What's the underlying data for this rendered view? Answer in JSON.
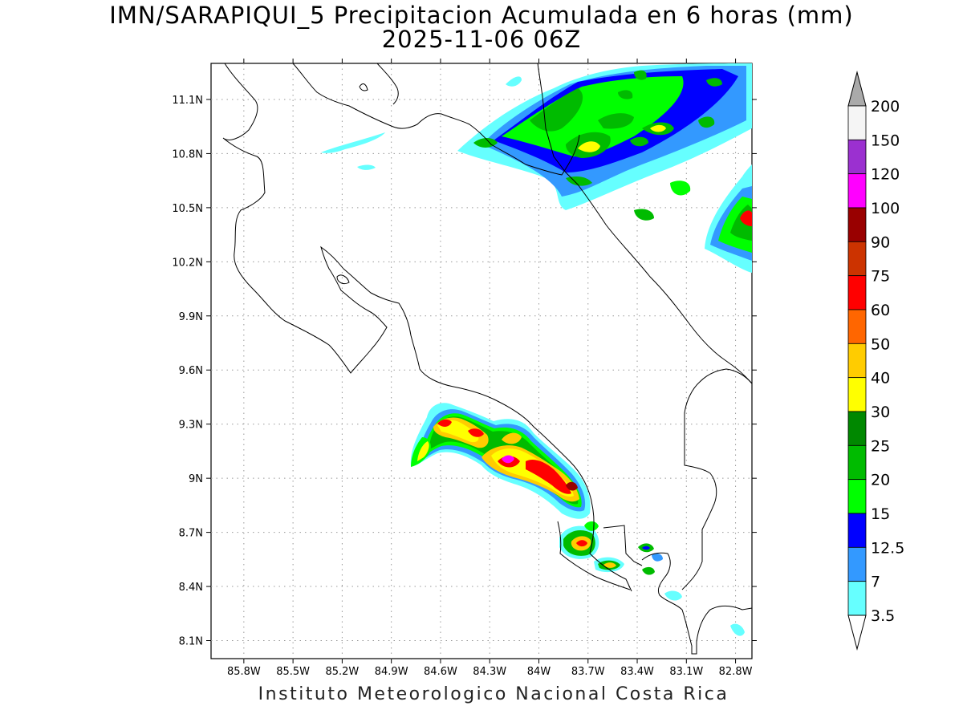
{
  "header": {
    "title": "IMN/SARAPIQUI_5 Precipitacion Acumulada en 6 horas (mm)",
    "subtitle": "2025-11-06 06Z"
  },
  "footer": "Instituto Meteorologico Nacional Costa Rica",
  "map": {
    "lon_range": [
      -86.0,
      -82.7
    ],
    "lat_range": [
      8.0,
      11.3
    ],
    "lon_ticks": [
      "85.8W",
      "85.5W",
      "85.2W",
      "84.9W",
      "84.6W",
      "84.3W",
      "84W",
      "83.7W",
      "83.4W",
      "83.1W",
      "82.8W"
    ],
    "lat_ticks": [
      "11.1N",
      "10.8N",
      "10.5N",
      "10.2N",
      "9.9N",
      "9.6N",
      "9.3N",
      "9N",
      "8.7N",
      "8.4N",
      "8.1N"
    ],
    "grid": "dotted"
  },
  "colorbar": {
    "labels": [
      "200",
      "150",
      "120",
      "100",
      "90",
      "75",
      "60",
      "50",
      "40",
      "30",
      "25",
      "20",
      "15",
      "12.5",
      "7",
      "3.5"
    ],
    "colors": [
      "#f5f5f5",
      "#9b30d0",
      "#ff00ff",
      "#990000",
      "#cc3300",
      "#ff0000",
      "#ff6600",
      "#ffcc00",
      "#ffff00",
      "#008800",
      "#00bb00",
      "#00ff00",
      "#0000ff",
      "#3399ff",
      "#66ffff"
    ],
    "over_color": "#aaaaaa",
    "units": "mm"
  }
}
